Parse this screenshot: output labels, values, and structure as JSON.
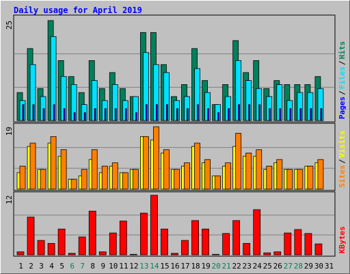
{
  "chart_data": [
    {
      "type": "bar",
      "title": "Daily usage for April 2019",
      "ylim": [
        0,
        25
      ],
      "yticks": [
        25
      ],
      "grid": true,
      "legend_separator": "/",
      "series": [
        {
          "name": "Hits",
          "color": "#00805c",
          "values": [
            7,
            18,
            8,
            25,
            15,
            11,
            7,
            15,
            8,
            12,
            8,
            6,
            22,
            22,
            14,
            6,
            9,
            18,
            10,
            4,
            9,
            20,
            12,
            15,
            8,
            10,
            9,
            9,
            9,
            11,
            null
          ]
        },
        {
          "name": "Files",
          "color": "#00e0ff",
          "values": [
            5,
            14,
            6,
            21,
            11,
            9,
            4,
            10,
            5,
            9,
            5,
            6,
            17,
            14,
            12,
            5,
            6,
            13,
            7,
            4,
            6,
            15,
            10,
            8,
            6,
            9,
            5,
            7,
            7,
            8,
            null
          ]
        },
        {
          "name": "Pages",
          "color": "#0000ff",
          "values": [
            4,
            4,
            3,
            4,
            3,
            2,
            2,
            3,
            3,
            3,
            3,
            2,
            4,
            4,
            4,
            3,
            3,
            4,
            3,
            2,
            3,
            4,
            4,
            4,
            3,
            3,
            3,
            3,
            3,
            3,
            null
          ]
        }
      ]
    },
    {
      "type": "bar",
      "ylim": [
        0,
        19
      ],
      "yticks": [
        19
      ],
      "grid": true,
      "legend_separator": "/",
      "series": [
        {
          "name": "Visits",
          "color": "#ffff00",
          "values": [
            5,
            13,
            6,
            14,
            10,
            3,
            4,
            9,
            5,
            7,
            5,
            6,
            16,
            15,
            11,
            6,
            7,
            13,
            8,
            4,
            7,
            13,
            10,
            10,
            6,
            8,
            6,
            6,
            7,
            8,
            null
          ]
        },
        {
          "name": "Sites",
          "color": "#ff8000",
          "values": [
            7,
            14,
            6,
            16,
            12,
            3,
            6,
            12,
            7,
            8,
            5,
            6,
            16,
            19,
            12,
            6,
            8,
            14,
            9,
            4,
            8,
            17,
            11,
            12,
            7,
            9,
            6,
            6,
            7,
            9,
            null
          ]
        }
      ]
    },
    {
      "type": "bar",
      "ylim": [
        0,
        12
      ],
      "yticks": [
        12
      ],
      "grid": true,
      "categories": [
        "1",
        "2",
        "3",
        "4",
        "5",
        "6",
        "7",
        "8",
        "9",
        "10",
        "11",
        "12",
        "13",
        "14",
        "15",
        "16",
        "17",
        "18",
        "19",
        "20",
        "21",
        "22",
        "23",
        "24",
        "25",
        "26",
        "27",
        "28",
        "29",
        "30",
        "31"
      ],
      "category_colors": [
        "#000000",
        "#000000",
        "#000000",
        "#000000",
        "#000000",
        "#00805c",
        "#00805c",
        "#000000",
        "#000000",
        "#000000",
        "#000000",
        "#000000",
        "#00805c",
        "#00805c",
        "#000000",
        "#000000",
        "#000000",
        "#000000",
        "#000000",
        "#00805c",
        "#00805c",
        "#000000",
        "#000000",
        "#000000",
        "#000000",
        "#000000",
        "#00805c",
        "#00805c",
        "#000000",
        "#000000",
        "#000000"
      ],
      "series": [
        {
          "name": "KBytes",
          "color": "#ff0000",
          "values": [
            0.6,
            7.6,
            2.9,
            2.3,
            5.2,
            0.3,
            3.6,
            8.8,
            0.6,
            4.4,
            6.8,
            0.1,
            8.4,
            12,
            5.2,
            0.3,
            2.9,
            6.9,
            5.2,
            0.1,
            4.3,
            6.9,
            2.3,
            9.1,
            0.4,
            0.6,
            4.4,
            5.1,
            4.3,
            2.2,
            null
          ]
        }
      ]
    }
  ]
}
